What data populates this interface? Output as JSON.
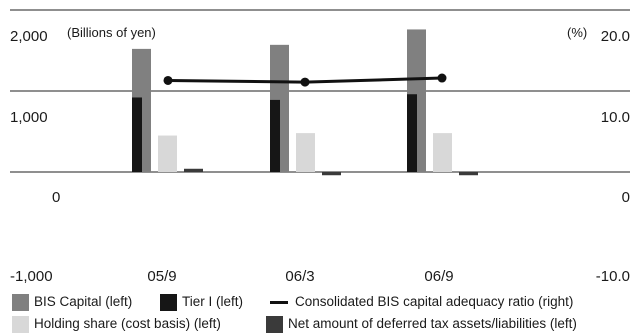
{
  "chart_data": {
    "type": "bar",
    "categories": [
      "05/9",
      "06/3",
      "06/9"
    ],
    "left_axis": {
      "unit_label": "(Billions of yen)",
      "ticks": [
        "2,000",
        "1,000",
        "0",
        "-1,000"
      ],
      "tick_values": [
        2000,
        1000,
        0,
        -1000
      ],
      "ylim": [
        -1000,
        2000
      ]
    },
    "right_axis": {
      "unit_label": "(%)",
      "ticks": [
        "20.0",
        "10.0",
        "0",
        "-10.0"
      ],
      "tick_values": [
        20,
        10,
        0,
        -10
      ],
      "ylim": [
        -10,
        20
      ]
    },
    "series": [
      {
        "name": "BIS Capital (left)",
        "axis": "left",
        "kind": "bar",
        "color": "#808080",
        "values": [
          1520,
          1570,
          1760
        ]
      },
      {
        "name": "Tier I (left)",
        "axis": "left",
        "kind": "bar",
        "color": "#161616",
        "values": [
          920,
          890,
          960
        ]
      },
      {
        "name": "Holding share (cost basis) (left)",
        "axis": "left",
        "kind": "bar",
        "color": "#d8d8d8",
        "values": [
          450,
          480,
          480
        ]
      },
      {
        "name": "Net amount of deferred tax assets/liabilities (left)",
        "axis": "left",
        "kind": "bar",
        "color": "#3a3a3a",
        "values": [
          40,
          -40,
          -40
        ]
      },
      {
        "name": "Consolidated BIS capital adequacy ratio (right)",
        "axis": "right",
        "kind": "line",
        "color": "#111111",
        "values": [
          11.3,
          11.1,
          11.6
        ]
      }
    ],
    "grid": true,
    "legend_position": "bottom"
  },
  "legend": {
    "row1": [
      "BIS Capital (left)",
      "Tier I (left)",
      "Consolidated BIS capital adequacy ratio (right)"
    ],
    "row2": [
      "Holding share (cost basis) (left)",
      "Net amount of deferred tax assets/liabilities (left)"
    ]
  }
}
